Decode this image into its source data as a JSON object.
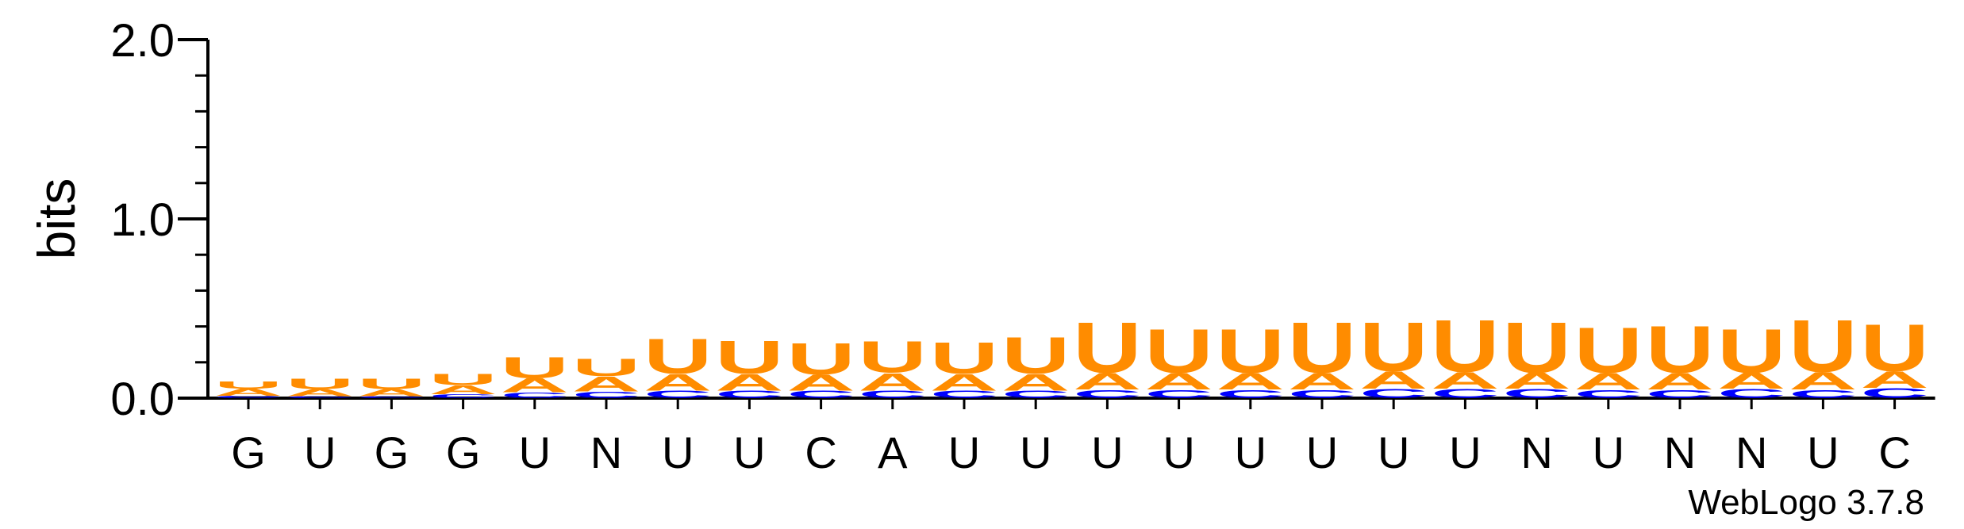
{
  "chart_data": {
    "type": "sequence-logo",
    "ylabel": "bits",
    "ylim": [
      0,
      2.0
    ],
    "yticks": [
      {
        "value": 0.0,
        "label": "0.0"
      },
      {
        "value": 1.0,
        "label": "1.0"
      },
      {
        "value": 2.0,
        "label": "2.0"
      }
    ],
    "categories": [
      "G",
      "U",
      "G",
      "G",
      "U",
      "N",
      "U",
      "U",
      "C",
      "A",
      "U",
      "U",
      "U",
      "U",
      "U",
      "U",
      "U",
      "U",
      "N",
      "U",
      "N",
      "N",
      "U",
      "C"
    ],
    "colors": {
      "U": "#ff8c00",
      "A": "#ff8c00",
      "C": "#0000ff",
      "G": "#0000ff"
    },
    "series": [
      {
        "name": "G",
        "values": [
          0.003,
          0.002,
          0.003,
          0.003,
          0.003,
          0.003,
          0.003,
          0.003,
          0.003,
          0.003,
          0.003,
          0.003,
          0.003,
          0.003,
          0.003,
          0.003,
          0.003,
          0.003,
          0.003,
          0.003,
          0.003,
          0.003,
          0.003,
          0.003
        ]
      },
      {
        "name": "C",
        "values": [
          0.01,
          0.008,
          0.008,
          0.02,
          0.03,
          0.035,
          0.04,
          0.04,
          0.04,
          0.04,
          0.04,
          0.04,
          0.045,
          0.045,
          0.045,
          0.045,
          0.05,
          0.05,
          0.05,
          0.045,
          0.045,
          0.05,
          0.045,
          0.055
        ]
      },
      {
        "name": "A",
        "values": [
          0.04,
          0.04,
          0.04,
          0.05,
          0.08,
          0.085,
          0.095,
          0.095,
          0.09,
          0.1,
          0.095,
          0.095,
          0.095,
          0.095,
          0.095,
          0.095,
          0.1,
          0.095,
          0.09,
          0.095,
          0.095,
          0.09,
          0.1,
          0.095
        ]
      },
      {
        "name": "U",
        "values": [
          0.04,
          0.06,
          0.06,
          0.065,
          0.12,
          0.1,
          0.2,
          0.19,
          0.18,
          0.18,
          0.18,
          0.21,
          0.29,
          0.25,
          0.25,
          0.29,
          0.28,
          0.3,
          0.29,
          0.26,
          0.27,
          0.25,
          0.3,
          0.27
        ]
      }
    ]
  },
  "footer": {
    "credit": "WebLogo 3.7.8"
  }
}
